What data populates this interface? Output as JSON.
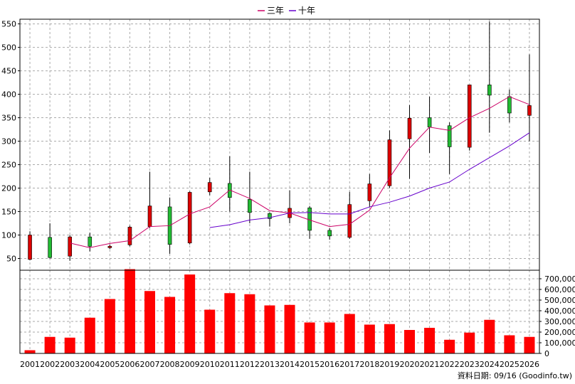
{
  "legend": [
    {
      "label": "三年",
      "color": "#cc0066"
    },
    {
      "label": "十年",
      "color": "#6600cc"
    }
  ],
  "footer": "資料日期: 09/16  (Goodinfo.tw)",
  "colors": {
    "up": "#dd0000",
    "down": "#22bb33",
    "volume": "#ff0000",
    "grid": "#aaaaaa"
  },
  "chart_data": [
    {
      "type": "candlestick",
      "ylim": [
        25,
        560
      ],
      "yticks": [
        50,
        100,
        150,
        200,
        250,
        300,
        350,
        400,
        450,
        500,
        550
      ],
      "years": [
        "2001",
        "2002",
        "2003",
        "2004",
        "2005",
        "2006",
        "2007",
        "2008",
        "2009",
        "2010",
        "2011",
        "2012",
        "2013",
        "2014",
        "2015",
        "2016",
        "2017",
        "2018",
        "2019",
        "2020",
        "2021",
        "2022",
        "2023",
        "2024",
        "2025",
        "2026"
      ],
      "open": [
        48,
        95,
        55,
        96,
        74,
        79,
        118,
        160,
        83,
        192,
        210,
        176,
        146,
        137,
        158,
        110,
        95,
        173,
        205,
        305,
        350,
        333,
        287,
        420,
        395,
        355
      ],
      "close": [
        100,
        52,
        96,
        76,
        76,
        117,
        162,
        80,
        191,
        212,
        180,
        148,
        135,
        157,
        110,
        98,
        165,
        209,
        303,
        349,
        330,
        288,
        420,
        398,
        360,
        376
      ],
      "high": [
        108,
        125,
        100,
        105,
        80,
        120,
        235,
        180,
        193,
        222,
        268,
        235,
        148,
        195,
        162,
        115,
        192,
        230,
        323,
        377,
        395,
        340,
        420,
        555,
        410,
        485
      ],
      "low": [
        46,
        50,
        45,
        65,
        70,
        76,
        115,
        60,
        80,
        185,
        150,
        125,
        118,
        125,
        92,
        90,
        92,
        160,
        200,
        220,
        275,
        230,
        280,
        318,
        340,
        300
      ],
      "series": [
        {
          "name": "三年",
          "values": [
            null,
            null,
            83,
            73,
            82,
            88,
            118,
            120,
            145,
            160,
            196,
            178,
            152,
            147,
            132,
            118,
            123,
            153,
            222,
            285,
            330,
            323,
            350,
            370,
            395,
            378
          ]
        },
        {
          "name": "十年",
          "values": [
            null,
            null,
            null,
            null,
            null,
            null,
            null,
            null,
            null,
            116,
            122,
            132,
            137,
            147,
            148,
            145,
            145,
            160,
            170,
            183,
            200,
            213,
            240,
            265,
            290,
            318
          ]
        }
      ]
    },
    {
      "type": "bar",
      "ylim": [
        0,
        780000
      ],
      "yticks": [
        "0",
        "100,000",
        "200,000",
        "300,000",
        "400,000",
        "500,000",
        "600,000",
        "700,000"
      ],
      "ytick_values": [
        0,
        100000,
        200000,
        300000,
        400000,
        500000,
        600000,
        700000
      ],
      "categories": [
        "2001",
        "2002",
        "2003",
        "2004",
        "2005",
        "2006",
        "2007",
        "2008",
        "2009",
        "2010",
        "2011",
        "2012",
        "2013",
        "2014",
        "2015",
        "2016",
        "2017",
        "2018",
        "2019",
        "2020",
        "2021",
        "2022",
        "2023",
        "2024",
        "2025",
        "2026"
      ],
      "values": [
        30000,
        155000,
        148000,
        335000,
        510000,
        790000,
        585000,
        530000,
        740000,
        410000,
        565000,
        555000,
        450000,
        455000,
        290000,
        290000,
        370000,
        270000,
        275000,
        220000,
        240000,
        128000,
        195000,
        315000,
        170000,
        155000
      ]
    }
  ]
}
